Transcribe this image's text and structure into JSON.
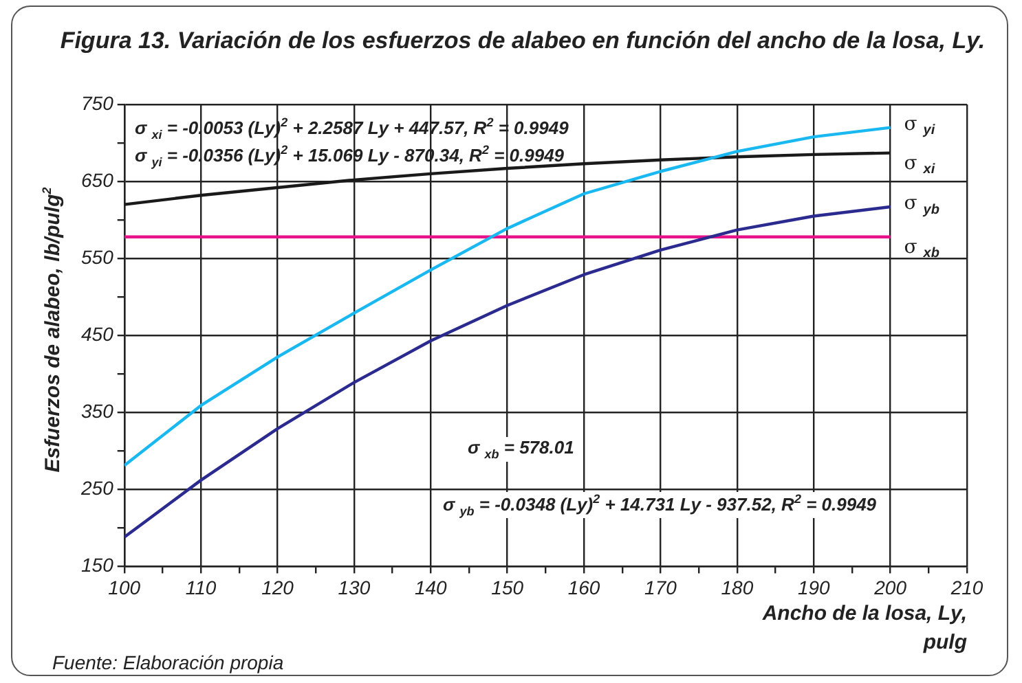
{
  "chart_data": {
    "type": "line",
    "title": "Figura 13. Variación de los esfuerzos de alabeo en función del ancho de la losa, Ly.",
    "xlabel": "Ancho de la losa, Ly, pulg",
    "ylabel": "Esfuerzos de alabeo, lb/pulg$^{2}$",
    "x": [
      100,
      110,
      120,
      130,
      140,
      150,
      160,
      170,
      180,
      190,
      200
    ],
    "series": [
      {
        "name": "σ $_{yi}$",
        "color": "#1ab8f0",
        "values": [
          281,
          359,
          422,
          479,
          535,
          589,
          634,
          663,
          689,
          708,
          720
        ]
      },
      {
        "name": "σ $_{xi}$",
        "color": "#1a1a1a",
        "values": [
          620,
          632,
          642,
          652,
          660,
          667,
          673,
          678,
          682,
          685,
          687
        ]
      },
      {
        "name": "σ $_{yb}$",
        "color": "#2b2a8f",
        "values": [
          188,
          262,
          329,
          389,
          443,
          489,
          529,
          561,
          587,
          605,
          617
        ]
      },
      {
        "name": "σ $_{xb}$",
        "color": "#e8138a",
        "values": [
          578,
          578,
          578,
          578,
          578,
          578,
          578,
          578,
          578,
          578,
          578
        ]
      }
    ],
    "xlim": [
      100,
      210
    ],
    "xticks": [
      100,
      {
        "value": 105,
        "label": null
      },
      110,
      {
        "value": 115,
        "label": null
      },
      120,
      {
        "value": 125,
        "label": null
      },
      130,
      {
        "value": 135,
        "label": null
      },
      140,
      {
        "value": 145,
        "label": null
      },
      150,
      {
        "value": 155,
        "label": null
      },
      160,
      {
        "value": 165,
        "label": null
      },
      170,
      {
        "value": 175,
        "label": null
      },
      180,
      {
        "value": 185,
        "label": null
      },
      190,
      {
        "value": 195,
        "label": null
      },
      200,
      {
        "value": 205,
        "label": null
      },
      210
    ],
    "ylim": [
      150,
      750
    ],
    "yticks": [
      150,
      {
        "value": 200,
        "label": null
      },
      250,
      {
        "value": 300,
        "label": null
      },
      350,
      {
        "value": 400,
        "label": null
      },
      450,
      {
        "value": 500,
        "label": null
      },
      550,
      {
        "value": 600,
        "label": null
      },
      650,
      {
        "value": 700,
        "label": null
      },
      750
    ],
    "grid": true,
    "marker": "none",
    "line_style": "solid",
    "annotations": [
      "σ $_{xi}$ = -0.0053 (Ly)$^{2}$ + 2.2587 Ly + 447.57, R$^{2}$ = 0.9949",
      "σ $_{yi}$ = -0.0356 (Ly)$^{2}$ + 15.069 Ly - 870.34, R$^{2}$ = 0.9949",
      "σ $_{xb}$ = 578.01",
      "σ $_{yb}$ = -0.0348 (Ly)$^{2}$ + 14.731 Ly - 937.52, R$^{2}$ = 0.9949",
      "Fuente: Elaboración propia"
    ]
  }
}
